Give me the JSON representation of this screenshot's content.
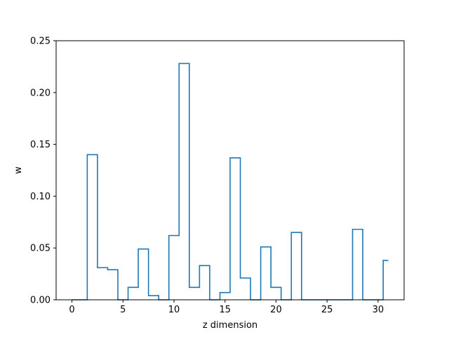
{
  "chart_data": {
    "type": "line",
    "drawstyle": "steps-mid",
    "title": "",
    "xlabel": "z dimension",
    "ylabel": "w",
    "xlim": [
      -1.55,
      32.55
    ],
    "ylim": [
      0,
      0.25
    ],
    "xticks": [
      0,
      5,
      10,
      15,
      20,
      25,
      30
    ],
    "yticks": [
      0.0,
      0.05,
      0.1,
      0.15,
      0.2,
      0.25
    ],
    "ytick_labels": [
      "0.00",
      "0.05",
      "0.10",
      "0.15",
      "0.20",
      "0.25"
    ],
    "grid": false,
    "legend": "none",
    "color": "#1f77b4",
    "x": [
      0,
      1,
      2,
      3,
      4,
      5,
      6,
      7,
      8,
      9,
      10,
      11,
      12,
      13,
      14,
      15,
      16,
      17,
      18,
      19,
      20,
      21,
      22,
      23,
      24,
      25,
      26,
      27,
      28,
      29,
      30,
      31
    ],
    "y": [
      0.0,
      0.0,
      0.14,
      0.031,
      0.029,
      0.0,
      0.012,
      0.049,
      0.004,
      0.0,
      0.062,
      0.228,
      0.012,
      0.033,
      0.0,
      0.007,
      0.137,
      0.021,
      0.0,
      0.051,
      0.012,
      0.0,
      0.065,
      0.0,
      0.0,
      0.0,
      0.0,
      0.0,
      0.068,
      0.0,
      0.0,
      0.038
    ]
  }
}
